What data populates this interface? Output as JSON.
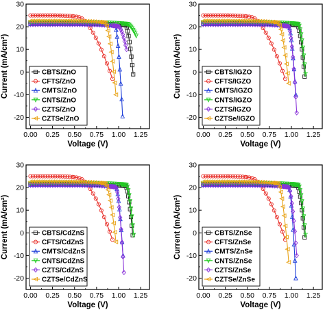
{
  "chart_data": [
    {
      "type": "line",
      "xlabel": "Voltage (V)",
      "ylabel": "Current (mA/cm²)",
      "xlim": [
        -0.05,
        1.35
      ],
      "ylim": [
        -25,
        30
      ],
      "xticks": [
        "0.00",
        "0.25",
        "0.50",
        "0.75",
        "1.00",
        "1.25"
      ],
      "yticks": [
        "-20",
        "-10",
        "0",
        "10",
        "20",
        "30"
      ],
      "legend_position": "bottom-left",
      "series": [
        {
          "name": "CBTS/ZnO",
          "color": "#222222",
          "marker": "square",
          "jsc": 21.5,
          "voc": 1.165,
          "vbreak": 1.08,
          "yend": -1
        },
        {
          "name": "CFTS/ZnO",
          "color": "#e8312b",
          "marker": "circle",
          "jsc": 25.0,
          "voc": 0.93,
          "vbreak": 0.55,
          "yend": -3
        },
        {
          "name": "CMTS/ZnO",
          "color": "#1f3fd9",
          "marker": "triangle-up",
          "jsc": 21.3,
          "voc": 1.045,
          "vbreak": 0.96,
          "yend": -19.5
        },
        {
          "name": "CNTS/ZnO",
          "color": "#22cc22",
          "marker": "triangle-down",
          "jsc": 22.0,
          "voc": 1.2,
          "vbreak": 1.1,
          "yend": 16
        },
        {
          "name": "CZTS/ZnO",
          "color": "#8b35d9",
          "marker": "diamond",
          "jsc": 21.0,
          "voc": 1.09,
          "vbreak": 1.0,
          "yend": 10
        },
        {
          "name": "CZTSe/ZnO",
          "color": "#e8a317",
          "marker": "left-triangle",
          "jsc": 22.6,
          "voc": 0.97,
          "vbreak": 0.85,
          "yend": -10
        }
      ]
    },
    {
      "type": "line",
      "xlabel": "Voltage (V)",
      "ylabel": "Current (mA/cm²)",
      "xlim": [
        -0.05,
        1.35
      ],
      "ylim": [
        -25,
        30
      ],
      "xticks": [
        "0.00",
        "0.25",
        "0.50",
        "0.75",
        "1.00",
        "1.25"
      ],
      "yticks": [
        "-20",
        "-10",
        "0",
        "10",
        "20",
        "30"
      ],
      "legend_position": "bottom-left",
      "series": [
        {
          "name": "CBTS/IGZO",
          "color": "#222222",
          "marker": "square",
          "jsc": 21.5,
          "voc": 1.15,
          "vbreak": 1.07,
          "yend": -2
        },
        {
          "name": "CFTS/IGZO",
          "color": "#e8312b",
          "marker": "circle",
          "jsc": 25.0,
          "voc": 0.93,
          "vbreak": 0.55,
          "yend": -3
        },
        {
          "name": "CMTS/IGZO",
          "color": "#1f3fd9",
          "marker": "triangle-up",
          "jsc": 21.3,
          "voc": 1.05,
          "vbreak": 0.97,
          "yend": -10
        },
        {
          "name": "CNTS/IGZO",
          "color": "#22cc22",
          "marker": "triangle-down",
          "jsc": 22.0,
          "voc": 1.16,
          "vbreak": 1.08,
          "yend": -1
        },
        {
          "name": "CZTS/IGZO",
          "color": "#8b35d9",
          "marker": "diamond",
          "jsc": 21.0,
          "voc": 1.06,
          "vbreak": 0.97,
          "yend": -18
        },
        {
          "name": "CZTSe/IGZO",
          "color": "#e8a317",
          "marker": "left-triangle",
          "jsc": 22.6,
          "voc": 0.97,
          "vbreak": 0.85,
          "yend": -5
        }
      ]
    },
    {
      "type": "line",
      "xlabel": "Voltage (V)",
      "ylabel": "Current (mA/cm²)",
      "xlim": [
        -0.05,
        1.35
      ],
      "ylim": [
        -25,
        30
      ],
      "xticks": [
        "0.00",
        "0.25",
        "0.50",
        "0.75",
        "1.00",
        "1.25"
      ],
      "yticks": [
        "-20",
        "-10",
        "0",
        "10",
        "20",
        "30"
      ],
      "legend_position": "bottom-left",
      "series": [
        {
          "name": "CBTS/CdZnS",
          "color": "#222222",
          "marker": "square",
          "jsc": 21.5,
          "voc": 1.16,
          "vbreak": 1.08,
          "yend": -1
        },
        {
          "name": "CFTS/CdZnS",
          "color": "#e8312b",
          "marker": "circle",
          "jsc": 25.0,
          "voc": 0.93,
          "vbreak": 0.55,
          "yend": -3
        },
        {
          "name": "CMTS/CdZnS",
          "color": "#1f3fd9",
          "marker": "triangle-up",
          "jsc": 21.3,
          "voc": 1.05,
          "vbreak": 0.97,
          "yend": -10
        },
        {
          "name": "CNTS/CdZnS",
          "color": "#22cc22",
          "marker": "triangle-down",
          "jsc": 22.0,
          "voc": 1.17,
          "vbreak": 1.09,
          "yend": -1
        },
        {
          "name": "CZTS/CdZnS",
          "color": "#8b35d9",
          "marker": "diamond",
          "jsc": 21.0,
          "voc": 1.06,
          "vbreak": 0.97,
          "yend": -17.5
        },
        {
          "name": "CZTSe/CdZnS",
          "color": "#e8a317",
          "marker": "left-triangle",
          "jsc": 22.6,
          "voc": 0.97,
          "vbreak": 0.85,
          "yend": -4
        }
      ]
    },
    {
      "type": "line",
      "xlabel": "Voltage (V)",
      "ylabel": "Current (mA/cm²)",
      "xlim": [
        -0.05,
        1.35
      ],
      "ylim": [
        -25,
        30
      ],
      "xticks": [
        "0.00",
        "0.25",
        "0.50",
        "0.75",
        "1.00",
        "1.25"
      ],
      "yticks": [
        "-20",
        "-10",
        "0",
        "10",
        "20",
        "30"
      ],
      "legend_position": "bottom-left",
      "series": [
        {
          "name": "CBTS/ZnSe",
          "color": "#222222",
          "marker": "square",
          "jsc": 21.5,
          "voc": 1.15,
          "vbreak": 1.07,
          "yend": -2
        },
        {
          "name": "CFTS/ZnSe",
          "color": "#e8312b",
          "marker": "circle",
          "jsc": 25.0,
          "voc": 0.93,
          "vbreak": 0.55,
          "yend": -3
        },
        {
          "name": "CMTS/ZnSe",
          "color": "#1f3fd9",
          "marker": "triangle-up",
          "jsc": 21.3,
          "voc": 1.05,
          "vbreak": 0.97,
          "yend": -20
        },
        {
          "name": "CNTS/ZnSe",
          "color": "#22cc22",
          "marker": "triangle-down",
          "jsc": 22.0,
          "voc": 1.16,
          "vbreak": 1.08,
          "yend": -1
        },
        {
          "name": "CZTS/ZnSe",
          "color": "#8b35d9",
          "marker": "diamond",
          "jsc": 21.0,
          "voc": 1.06,
          "vbreak": 0.97,
          "yend": -10
        },
        {
          "name": "CZTSe/ZnSe",
          "color": "#e8a317",
          "marker": "left-triangle",
          "jsc": 22.6,
          "voc": 0.97,
          "vbreak": 0.85,
          "yend": -13
        }
      ]
    }
  ]
}
